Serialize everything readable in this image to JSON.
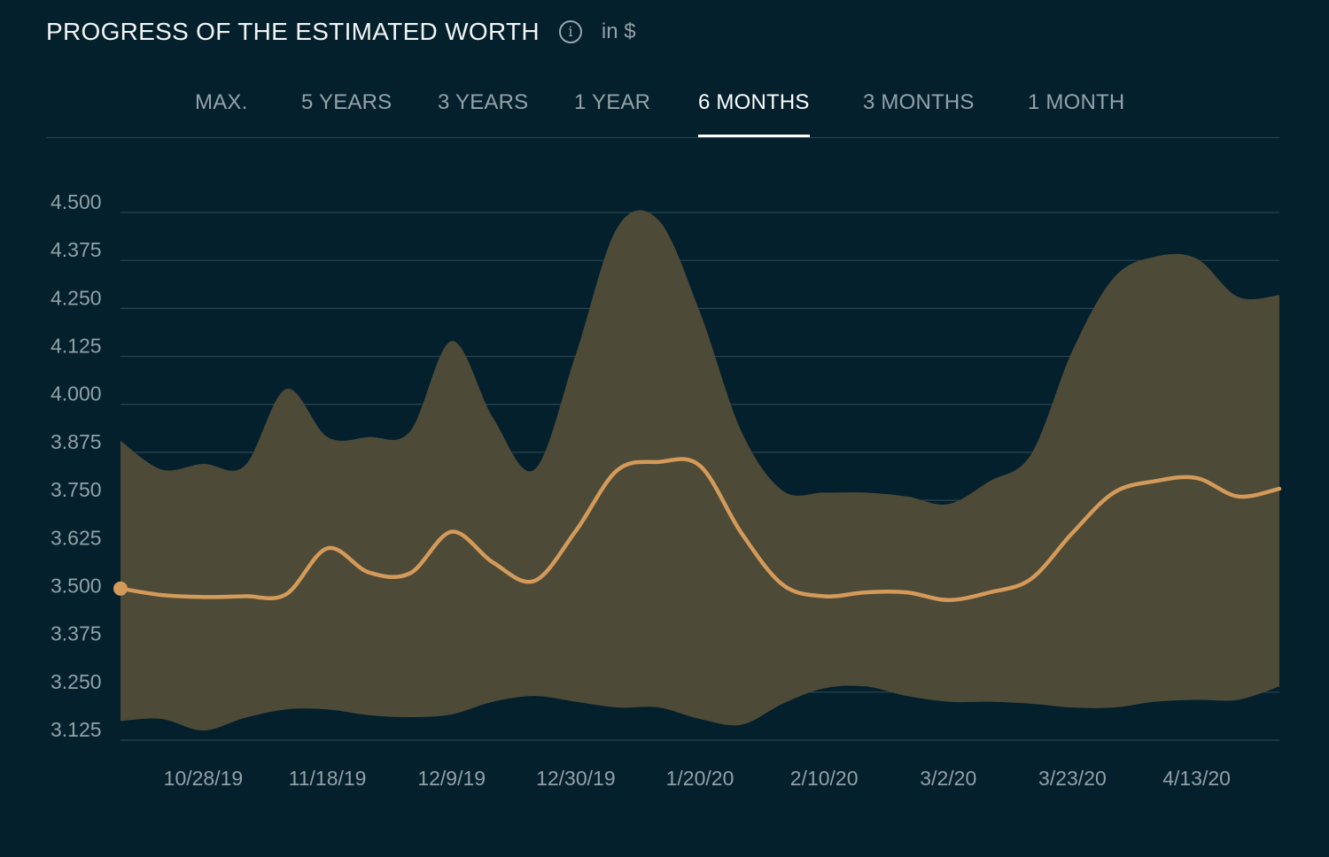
{
  "header": {
    "title": "PROGRESS OF THE ESTIMATED WORTH",
    "info_icon": "info-icon",
    "unit": "in $"
  },
  "tabs": [
    {
      "label": "MAX.",
      "active": false
    },
    {
      "label": "5 YEARS",
      "active": false
    },
    {
      "label": "3 YEARS",
      "active": false
    },
    {
      "label": "1 YEAR",
      "active": false
    },
    {
      "label": "6 MONTHS",
      "active": true
    },
    {
      "label": "3 MONTHS",
      "active": false
    },
    {
      "label": "1 MONTH",
      "active": false
    }
  ],
  "colors": {
    "background": "#03202c",
    "band": "#4d4a37",
    "line": "#d39a59",
    "grid": "#2c4450",
    "text_muted": "#93a0a8"
  },
  "chart_data": {
    "type": "area",
    "title": "",
    "xlabel": "",
    "ylabel": "",
    "ylim": [
      3.125,
      4.5
    ],
    "yticks": [
      "4.500",
      "4.375",
      "4.250",
      "4.125",
      "4.000",
      "3.875",
      "3.750",
      "3.625",
      "3.500",
      "3.375",
      "3.250",
      "3.125"
    ],
    "xticks": [
      "10/28/19",
      "11/18/19",
      "12/9/19",
      "12/30/19",
      "1/20/20",
      "2/10/20",
      "3/2/20",
      "3/23/20",
      "4/13/20"
    ],
    "grid": true,
    "x": [
      "10/14/19",
      "10/21/19",
      "10/28/19",
      "11/4/19",
      "11/11/19",
      "11/18/19",
      "11/25/19",
      "12/2/19",
      "12/9/19",
      "12/16/19",
      "12/23/19",
      "12/30/19",
      "1/6/20",
      "1/13/20",
      "1/20/20",
      "1/27/20",
      "2/3/20",
      "2/10/20",
      "2/17/20",
      "2/24/20",
      "3/2/20",
      "3/9/20",
      "3/16/20",
      "3/23/20",
      "3/30/20",
      "4/6/20",
      "4/13/20",
      "4/20/20",
      "4/27/20"
    ],
    "series": [
      {
        "values": [
          3.52,
          3.503,
          3.498,
          3.5,
          3.505,
          3.625,
          3.562,
          3.56,
          3.668,
          3.588,
          3.54,
          3.67,
          3.828,
          3.85,
          3.84,
          3.665,
          3.53,
          3.5,
          3.51,
          3.51,
          3.49,
          3.51,
          3.545,
          3.665,
          3.77,
          3.8,
          3.808,
          3.76,
          3.78
        ]
      },
      {
        "values": [
          3.905,
          3.83,
          3.845,
          3.84,
          4.04,
          3.915,
          3.915,
          3.93,
          4.165,
          3.965,
          3.83,
          4.13,
          4.46,
          4.48,
          4.24,
          3.93,
          3.775,
          3.77,
          3.77,
          3.76,
          3.74,
          3.8,
          3.87,
          4.14,
          4.33,
          4.385,
          4.38,
          4.28,
          4.285
        ]
      },
      {
        "values": [
          3.175,
          3.18,
          3.15,
          3.183,
          3.205,
          3.205,
          3.19,
          3.185,
          3.192,
          3.225,
          3.24,
          3.225,
          3.21,
          3.21,
          3.18,
          3.165,
          3.22,
          3.26,
          3.265,
          3.24,
          3.225,
          3.225,
          3.22,
          3.21,
          3.21,
          3.225,
          3.23,
          3.23,
          3.265
        ]
      }
    ]
  }
}
